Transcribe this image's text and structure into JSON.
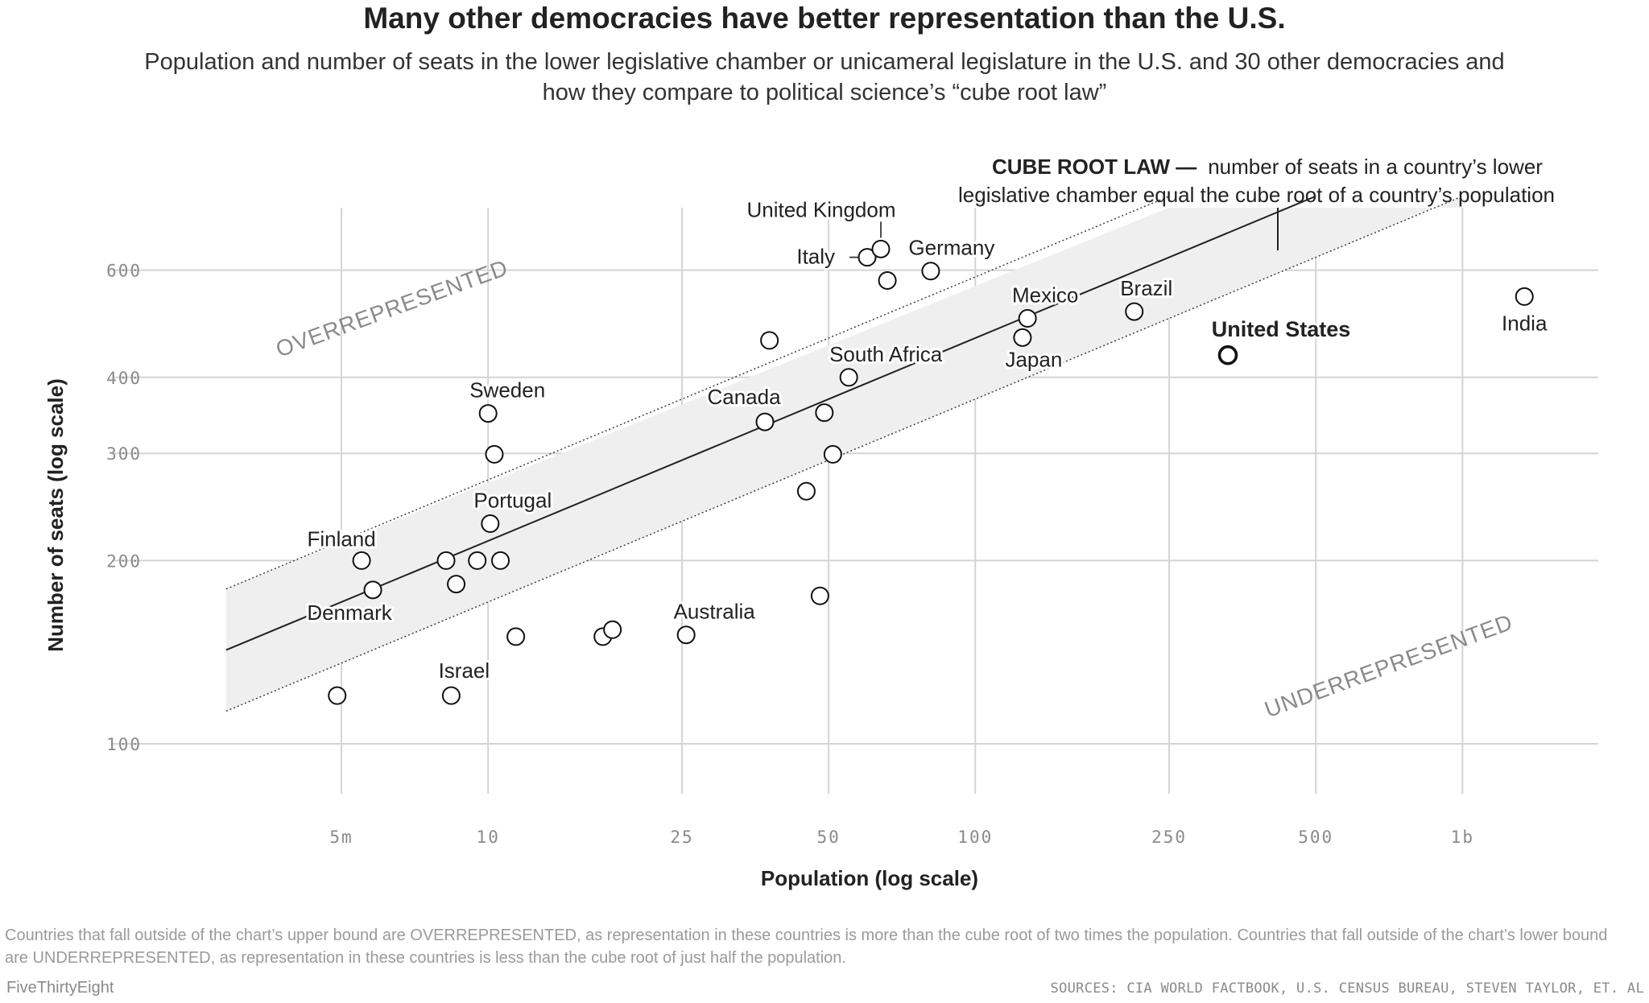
{
  "chart_data": {
    "type": "scatter",
    "title": "Many other democracies have better representation than the U.S.",
    "subtitle": "Population and number of seats in the lower legislative chamber or unicameral legislature in the U.S. and 30 other democracies and how they compare to political science’s “cube root law”",
    "xlabel": "Population (log scale)",
    "ylabel": "Number of seats (log scale)",
    "x_scale": "log",
    "y_scale": "log",
    "xlim": [
      2.3,
      1900
    ],
    "ylim": [
      88,
      760
    ],
    "x_ticks": [
      {
        "value": 5,
        "label": "5m"
      },
      {
        "value": 10,
        "label": "10"
      },
      {
        "value": 25,
        "label": "25"
      },
      {
        "value": 50,
        "label": "50"
      },
      {
        "value": 100,
        "label": "100"
      },
      {
        "value": 250,
        "label": "250"
      },
      {
        "value": 500,
        "label": "500"
      },
      {
        "value": 1000,
        "label": "1b"
      }
    ],
    "y_ticks": [
      {
        "value": 100,
        "label": "100"
      },
      {
        "value": 200,
        "label": "200"
      },
      {
        "value": 300,
        "label": "300"
      },
      {
        "value": 400,
        "label": "400"
      },
      {
        "value": 600,
        "label": "600"
      }
    ],
    "grid": true,
    "band_x_range": [
      2.9,
      1000
    ],
    "points": [
      {
        "x": 4.9,
        "y": 120,
        "label": ""
      },
      {
        "x": 5.5,
        "y": 200,
        "label": "Finland"
      },
      {
        "x": 5.8,
        "y": 179,
        "label": "Denmark"
      },
      {
        "x": 8.4,
        "y": 120,
        "label": "Israel"
      },
      {
        "x": 8.2,
        "y": 200,
        "label": ""
      },
      {
        "x": 8.6,
        "y": 183,
        "label": ""
      },
      {
        "x": 9.5,
        "y": 200,
        "label": ""
      },
      {
        "x": 10.0,
        "y": 349,
        "label": "Sweden"
      },
      {
        "x": 10.3,
        "y": 299,
        "label": ""
      },
      {
        "x": 10.1,
        "y": 230,
        "label": "Portugal"
      },
      {
        "x": 10.6,
        "y": 200,
        "label": ""
      },
      {
        "x": 11.4,
        "y": 150,
        "label": ""
      },
      {
        "x": 17.2,
        "y": 150,
        "label": ""
      },
      {
        "x": 18.0,
        "y": 154,
        "label": ""
      },
      {
        "x": 25.5,
        "y": 151,
        "label": "Australia"
      },
      {
        "x": 37,
        "y": 338,
        "label": "Canada"
      },
      {
        "x": 37.8,
        "y": 460,
        "label": ""
      },
      {
        "x": 45,
        "y": 260,
        "label": ""
      },
      {
        "x": 48,
        "y": 175,
        "label": ""
      },
      {
        "x": 49,
        "y": 350,
        "label": ""
      },
      {
        "x": 51,
        "y": 299,
        "label": ""
      },
      {
        "x": 55,
        "y": 400,
        "label": "South Africa"
      },
      {
        "x": 60,
        "y": 630,
        "label": "Italy"
      },
      {
        "x": 64,
        "y": 650,
        "label": "United Kingdom"
      },
      {
        "x": 66,
        "y": 577,
        "label": ""
      },
      {
        "x": 81,
        "y": 598,
        "label": "Germany"
      },
      {
        "x": 125,
        "y": 465,
        "label": "Japan"
      },
      {
        "x": 128,
        "y": 500,
        "label": "Mexico"
      },
      {
        "x": 212,
        "y": 513,
        "label": "Brazil"
      },
      {
        "x": 330,
        "y": 435,
        "label": "United States"
      },
      {
        "x": 1340,
        "y": 543,
        "label": "India"
      }
    ],
    "annotations": {
      "overrepresented": "OVERREPRESENTED",
      "underrepresented": "UNDERREPRESENTED",
      "law_bold": "CUBE ROOT LAW —",
      "law_line1": "number of seats in a country’s lower",
      "law_line2": "legislative chamber equal the cube root of a country’s population"
    }
  },
  "footer": {
    "note": "Countries that fall outside of the chart’s upper bound are OVERREPRESENTED, as representation in these countries is more than the cube root of two times the population. Countries that fall outside of the chart’s lower bound are UNDERREPRESENTED, as representation in these countries is less than the cube root of just half the population.",
    "brand": "FiveThirtyEight",
    "sources": "SOURCES: CIA WORLD FACTBOOK, U.S. CENSUS BUREAU, STEVEN TAYLOR, ET. AL"
  }
}
